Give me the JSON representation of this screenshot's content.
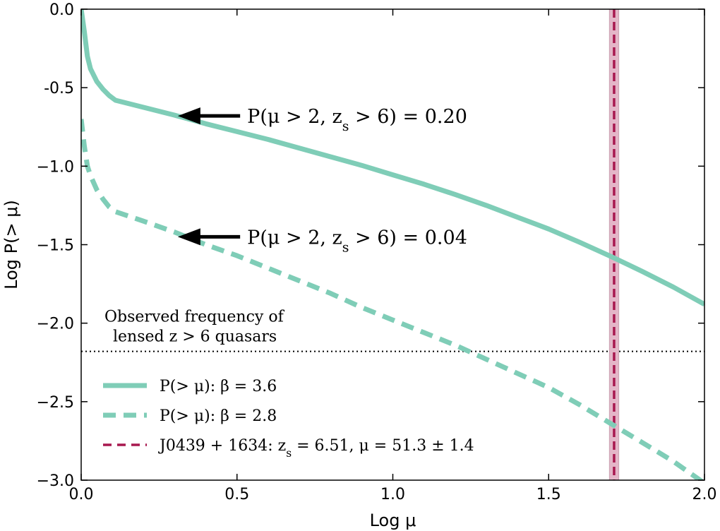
{
  "chart_data": {
    "type": "line",
    "xlabel": "Log μ",
    "ylabel": "Log P(> μ)",
    "xlim": [
      0.0,
      2.0
    ],
    "ylim": [
      -3.0,
      0.0
    ],
    "x_ticks": [
      0.0,
      0.5,
      1.0,
      1.5,
      2.0
    ],
    "x_tick_labels": [
      "0.0",
      "0.5",
      "1.0",
      "1.5",
      "2.0"
    ],
    "y_ticks": [
      0.0,
      -0.5,
      -1.0,
      -1.5,
      -2.0,
      -2.5,
      -3.0
    ],
    "y_tick_labels": [
      "0.0",
      "-0.5",
      "−1.0",
      "−1.5",
      "−2.0",
      "−2.5",
      "−3.0"
    ],
    "series": [
      {
        "name": "P(> μ): β = 3.6",
        "style": "solid",
        "color": "#7fcdb7",
        "x": [
          0.0,
          0.005,
          0.01,
          0.02,
          0.03,
          0.05,
          0.07,
          0.09,
          0.11,
          0.2,
          0.3,
          0.4,
          0.5,
          0.6,
          0.7,
          0.8,
          0.9,
          1.0,
          1.1,
          1.2,
          1.3,
          1.4,
          1.5,
          1.6,
          1.7,
          1.8,
          1.9,
          2.0
        ],
        "y": [
          0.0,
          -0.07,
          -0.14,
          -0.3,
          -0.38,
          -0.46,
          -0.51,
          -0.55,
          -0.58,
          -0.625,
          -0.675,
          -0.73,
          -0.78,
          -0.83,
          -0.885,
          -0.94,
          -0.995,
          -1.055,
          -1.115,
          -1.18,
          -1.25,
          -1.325,
          -1.4,
          -1.485,
          -1.575,
          -1.67,
          -1.77,
          -1.88
        ]
      },
      {
        "name": "P(> μ): β = 2.8",
        "style": "dashed",
        "color": "#7fcdb7",
        "x": [
          0.0,
          0.01,
          0.02,
          0.03,
          0.05,
          0.07,
          0.09,
          0.11,
          0.2,
          0.3,
          0.4,
          0.5,
          0.6,
          0.7,
          0.8,
          0.9,
          1.0,
          1.1,
          1.2,
          1.3,
          1.4,
          1.5,
          1.6,
          1.7,
          1.8,
          1.9,
          2.0
        ],
        "y": [
          -0.7,
          -0.87,
          -1.0,
          -1.06,
          -1.15,
          -1.21,
          -1.26,
          -1.29,
          -1.35,
          -1.42,
          -1.5,
          -1.57,
          -1.65,
          -1.73,
          -1.81,
          -1.9,
          -1.98,
          -2.06,
          -2.14,
          -2.23,
          -2.32,
          -2.41,
          -2.52,
          -2.64,
          -2.76,
          -2.88,
          -3.02
        ]
      }
    ],
    "reference_lines": [
      {
        "name": "Observed frequency of lensed z > 6 quasars",
        "orientation": "horizontal",
        "value": -2.18,
        "style": "dotted",
        "color": "#000000",
        "label_line1": "Observed frequency of",
        "label_line2": "lensed z > 6 quasars"
      },
      {
        "name": "J0439 + 1634",
        "orientation": "vertical",
        "value": 1.71,
        "band": [
          1.695,
          1.725
        ],
        "style": "dashed",
        "color": "#a8184f",
        "band_color": "#e4b6c8"
      }
    ],
    "annotations": [
      {
        "text": "P(μ > 2, z",
        "sub": "s",
        "tail": " > 6) = 0.20",
        "arrow_head": [
          0.31,
          -0.68
        ],
        "arrow_tail": [
          0.51,
          -0.68
        ]
      },
      {
        "text": "P(μ > 2, z",
        "sub": "s",
        "tail": " > 6) = 0.04",
        "arrow_head": [
          0.31,
          -1.45
        ],
        "arrow_tail": [
          0.51,
          -1.45
        ]
      }
    ],
    "legend": {
      "position": "lower-left",
      "entries": [
        {
          "text": "P(> μ):  β = 3.6",
          "style": "solid",
          "color": "#7fcdb7"
        },
        {
          "text": "P(> μ):  β = 2.8",
          "style": "dashed",
          "color": "#7fcdb7"
        },
        {
          "text": "J0439 + 1634:  z",
          "sub": "s",
          "tail": " = 6.51,  μ = 51.3 ± 1.4",
          "style": "dashed",
          "color": "#a8184f"
        }
      ]
    }
  }
}
